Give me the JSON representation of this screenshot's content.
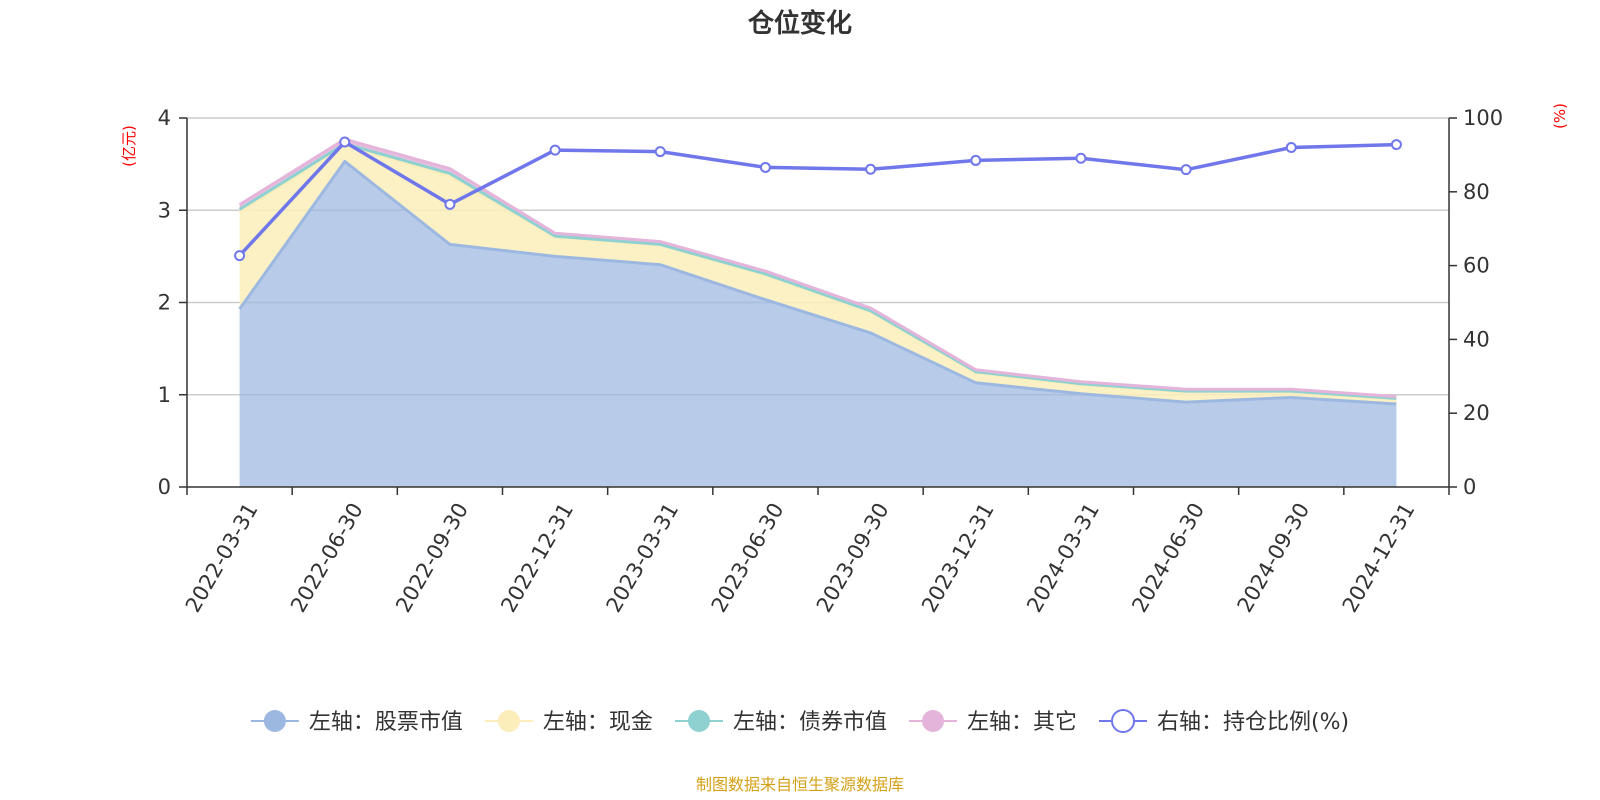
{
  "chart_data": {
    "type": "area",
    "title": "仓位变化",
    "left_unit": "(亿元)",
    "right_unit": "(%)",
    "categories": [
      "2022-03-31",
      "2022-06-30",
      "2022-09-30",
      "2022-12-31",
      "2023-03-31",
      "2023-06-30",
      "2023-09-30",
      "2023-12-31",
      "2024-03-31",
      "2024-06-30",
      "2024-09-30",
      "2024-12-31"
    ],
    "left_axis": {
      "min": 0,
      "max": 4,
      "ticks": [
        0,
        1,
        2,
        3,
        4
      ]
    },
    "right_axis": {
      "min": 0,
      "max": 100,
      "ticks": [
        0,
        20,
        40,
        60,
        80,
        100
      ]
    },
    "stacked_series": [
      {
        "name": "左轴：股票市值",
        "color": "#9db8e0",
        "values": [
          1.93,
          3.53,
          2.63,
          2.5,
          2.41,
          2.03,
          1.67,
          1.13,
          1.01,
          0.92,
          0.97,
          0.9
        ]
      },
      {
        "name": "左轴：现金",
        "color": "#fbeebb",
        "values": [
          1.05,
          0.18,
          0.74,
          0.21,
          0.21,
          0.27,
          0.23,
          0.11,
          0.1,
          0.11,
          0.06,
          0.05
        ]
      },
      {
        "name": "左轴：债券市值",
        "color": "#8fd1d1",
        "values": [
          0.03,
          0.01,
          0.03,
          0.01,
          0.01,
          0.01,
          0.01,
          0.01,
          0.01,
          0.01,
          0.01,
          0.01
        ]
      },
      {
        "name": "左轴：其它",
        "color": "#e4b4da",
        "values": [
          0.05,
          0.05,
          0.05,
          0.03,
          0.03,
          0.03,
          0.03,
          0.02,
          0.02,
          0.02,
          0.02,
          0.02
        ]
      }
    ],
    "line_series": {
      "name": "右轴：持仓比例(%)",
      "color": "#7077ea",
      "values": [
        62.7,
        93.5,
        76.6,
        91.3,
        90.9,
        86.6,
        86.1,
        88.5,
        89.1,
        86.0,
        92.0,
        92.8
      ]
    },
    "grid": true,
    "legend_position": "bottom"
  },
  "source": "制图数据来自恒生聚源数据库"
}
